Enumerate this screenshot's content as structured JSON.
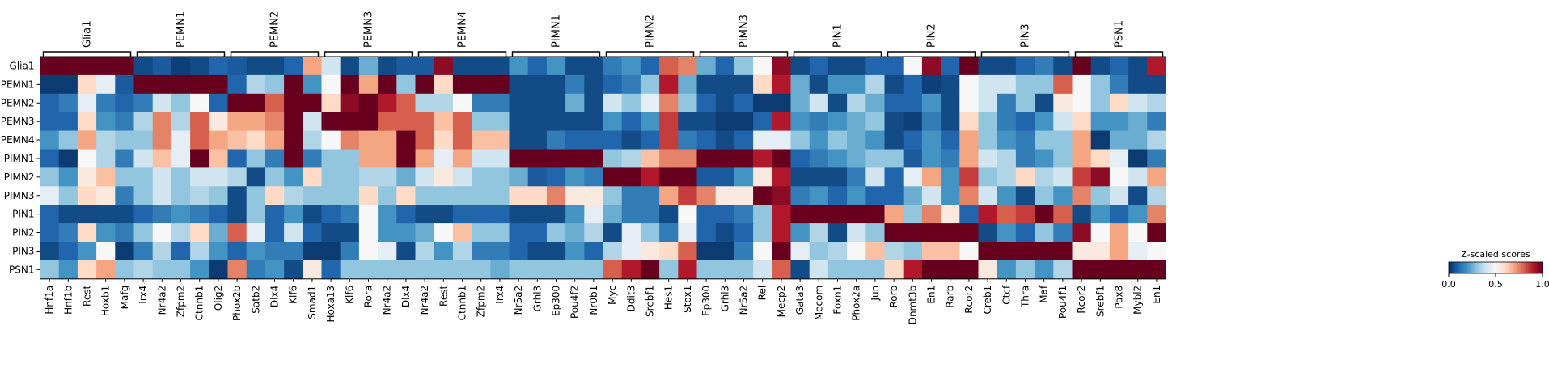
{
  "chart_data": {
    "type": "heatmap",
    "rows": [
      "Glia1",
      "PEMN1",
      "PEMN2",
      "PEMN3",
      "PEMN4",
      "PIMN1",
      "PIMN2",
      "PIMN3",
      "PIN1",
      "PIN2",
      "PIN3",
      "PSN1"
    ],
    "groups": [
      {
        "name": "Glia1",
        "genes": [
          "Hnf1a",
          "Hnf1b",
          "Rest",
          "Hoxb1",
          "Mafg"
        ]
      },
      {
        "name": "PEMN1",
        "genes": [
          "Irx4",
          "Nr4a2",
          "Zfpm2",
          "Ctnnb1",
          "Olig2"
        ]
      },
      {
        "name": "PEMN2",
        "genes": [
          "Phox2b",
          "Satb2",
          "Dlx4",
          "Klf6",
          "Smad1"
        ]
      },
      {
        "name": "PEMN3",
        "genes": [
          "Hoxa13",
          "Klf6",
          "Rora",
          "Nr4a2",
          "Dlx4"
        ]
      },
      {
        "name": "PEMN4",
        "genes": [
          "Nr4a2",
          "Rest",
          "Ctnnb1",
          "Zfpm2",
          "Irx4"
        ]
      },
      {
        "name": "PIMN1",
        "genes": [
          "Nr5a2",
          "Grhl3",
          "Ep300",
          "Pou4f2",
          "Nr0b1"
        ]
      },
      {
        "name": "PIMN2",
        "genes": [
          "Myc",
          "Ddit3",
          "Srebf1",
          "Hes1",
          "Stox1"
        ]
      },
      {
        "name": "PIMN3",
        "genes": [
          "Ep300",
          "Grhl3",
          "Nr5a2",
          "Rel",
          "Mecp2"
        ]
      },
      {
        "name": "PIN1",
        "genes": [
          "Gata3",
          "Mecom",
          "Foxn1",
          "Phox2a",
          "Jun"
        ]
      },
      {
        "name": "PIN2",
        "genes": [
          "Rorb",
          "Dnmt3b",
          "En1",
          "Rarb",
          "Rcor2"
        ]
      },
      {
        "name": "PIN3",
        "genes": [
          "Creb1",
          "Ctcf",
          "Thra",
          "Maf",
          "Pou4f1"
        ]
      },
      {
        "name": "PSN1",
        "genes": [
          "Rcor2",
          "Srebf1",
          "Pax8",
          "Mybl2",
          "En1"
        ]
      }
    ],
    "values": [
      [
        1,
        1,
        1,
        1,
        1,
        0.05,
        0.08,
        0.03,
        0.05,
        0.1,
        0.08,
        0.05,
        0.05,
        0.1,
        0.7,
        0.4,
        0.05,
        0.25,
        0.05,
        0.08,
        0.08,
        0.95,
        0.05,
        0.05,
        0.05,
        0.2,
        0.1,
        0.2,
        0.05,
        0.05,
        0.15,
        0.2,
        0.1,
        0.8,
        0.75,
        0.25,
        0.1,
        0.3,
        0.5,
        0.95,
        0.05,
        0.1,
        0.05,
        0.05,
        0.1,
        0.1,
        0.5,
        0.95,
        0.1,
        1,
        0.05,
        0.05,
        0.1,
        0.15,
        0.05,
        1,
        0.05,
        0.1,
        0.05,
        0.9
      ],
      [
        0.02,
        0.02,
        0.6,
        0.45,
        0.08,
        1,
        1,
        1,
        1,
        1,
        0.1,
        0.35,
        0.3,
        1,
        0.2,
        0.5,
        1,
        0.7,
        1,
        0.3,
        1,
        0.6,
        1,
        1,
        1,
        0.05,
        0.05,
        0.05,
        0.15,
        0.05,
        0.1,
        0.15,
        0.3,
        0.9,
        0.25,
        0.05,
        0.05,
        0.05,
        0.6,
        0.9,
        0.25,
        0.05,
        0.2,
        0.2,
        0.35,
        0.05,
        0.1,
        0.03,
        0.05,
        0.5,
        0.4,
        0.4,
        0.3,
        0.3,
        0.8,
        0.5,
        0.3,
        0.15,
        0.05,
        0.05
      ],
      [
        0.1,
        0.15,
        0.45,
        0.15,
        0.1,
        0.15,
        0.4,
        0.3,
        0.5,
        0.1,
        1,
        1,
        0.8,
        1,
        1,
        0.6,
        0.95,
        1,
        0.9,
        0.8,
        0.35,
        0.35,
        0.5,
        0.15,
        0.15,
        0.05,
        0.05,
        0.05,
        0.25,
        0.05,
        0.4,
        0.3,
        0.45,
        0.75,
        0.3,
        0.1,
        0.05,
        0.1,
        0.02,
        0.02,
        0.25,
        0.4,
        0.05,
        0.35,
        0.25,
        0.1,
        0.1,
        0.2,
        0.05,
        0.5,
        0.4,
        0.15,
        0.3,
        0.05,
        0.55,
        0.5,
        0.3,
        0.6,
        0.4,
        0.35
      ],
      [
        0.1,
        0.1,
        0.6,
        0.2,
        0.15,
        0.35,
        0.75,
        0.35,
        0.8,
        0.55,
        0.7,
        0.7,
        0.75,
        1,
        0.4,
        1,
        1,
        1,
        0.8,
        0.8,
        0.8,
        0.65,
        0.8,
        0.3,
        0.3,
        0.05,
        0.05,
        0.05,
        0.05,
        0.05,
        0.2,
        0.1,
        0.2,
        0.85,
        0.05,
        0.05,
        0.02,
        0.02,
        0.1,
        0.9,
        0.2,
        0.15,
        0.2,
        0.25,
        0.3,
        0.05,
        0.03,
        0.15,
        0.05,
        0.6,
        0.3,
        0.15,
        0.1,
        0.2,
        0.4,
        0.6,
        0.2,
        0.2,
        0.25,
        0.15
      ],
      [
        0.2,
        0.3,
        0.7,
        0.35,
        0.3,
        0.3,
        0.75,
        0.45,
        0.8,
        0.7,
        0.65,
        0.6,
        0.7,
        1,
        0.35,
        0.5,
        0.75,
        0.7,
        0.7,
        1,
        0.8,
        0.6,
        0.8,
        0.65,
        0.65,
        0.05,
        0.05,
        0.15,
        0.1,
        0.1,
        0.1,
        0.05,
        0.1,
        0.85,
        0.15,
        0.1,
        0.05,
        0.1,
        0.45,
        0.45,
        0.3,
        0.2,
        0.3,
        0.25,
        0.2,
        0.05,
        0.1,
        0.2,
        0.1,
        0.7,
        0.3,
        0.2,
        0.15,
        0.3,
        0.3,
        0.7,
        0.02,
        0.25,
        0.25,
        0.35
      ],
      [
        0.1,
        0.02,
        0.5,
        0.35,
        0.15,
        0.4,
        0.65,
        0.45,
        1,
        0.65,
        0.1,
        0.3,
        0.15,
        1,
        0.15,
        0.3,
        0.3,
        0.7,
        0.7,
        1,
        0.7,
        0.45,
        0.7,
        0.4,
        0.4,
        1,
        1,
        1,
        1,
        1,
        0.3,
        0.35,
        0.65,
        0.75,
        0.75,
        1,
        1,
        1,
        0.9,
        1,
        0.1,
        0.15,
        0.2,
        0.25,
        0.3,
        0.3,
        0.08,
        0.2,
        0.15,
        0.7,
        0.4,
        0.35,
        0.15,
        0.2,
        0.3,
        0.7,
        0.6,
        0.45,
        0.02,
        0.15
      ],
      [
        0.3,
        0.2,
        0.55,
        0.65,
        0.3,
        0.3,
        0.4,
        0.3,
        0.4,
        0.4,
        0.35,
        0.05,
        0.3,
        0.2,
        0.6,
        0.3,
        0.3,
        0.35,
        0.35,
        0.25,
        0.4,
        0.55,
        0.4,
        0.3,
        0.3,
        0.25,
        0.08,
        0.1,
        0.2,
        0.15,
        1,
        1,
        0.9,
        1,
        1,
        0.08,
        0.08,
        0.2,
        0.55,
        0.9,
        0.05,
        0.05,
        0.05,
        0.15,
        0.4,
        0.1,
        0.45,
        0.7,
        0.2,
        0.85,
        0.3,
        0.35,
        0.6,
        0.35,
        0.4,
        0.85,
        0.95,
        0.5,
        0.4,
        0.7
      ],
      [
        0.45,
        0.3,
        0.6,
        0.55,
        0.15,
        0.3,
        0.4,
        0.3,
        0.35,
        0.3,
        0.05,
        0.3,
        0.6,
        0.35,
        0.3,
        0.3,
        0.3,
        0.6,
        0.3,
        0.6,
        0.3,
        0.3,
        0.3,
        0.3,
        0.3,
        0.6,
        0.6,
        0.75,
        0.55,
        0.55,
        0.3,
        0.15,
        0.15,
        0.7,
        0.85,
        0.75,
        0.55,
        0.55,
        1,
        0.95,
        0.15,
        0.2,
        0.1,
        0.2,
        0.1,
        0.1,
        0.25,
        0.4,
        0.2,
        0.75,
        0.4,
        0.2,
        0.05,
        0.3,
        0.2,
        0.75,
        0.3,
        0.4,
        0.05,
        0.35
      ],
      [
        0.1,
        0.05,
        0.05,
        0.05,
        0.05,
        0.1,
        0.15,
        0.2,
        0.15,
        0.1,
        0.05,
        0.3,
        0.1,
        0.2,
        0.05,
        0.1,
        0.15,
        0.5,
        0.2,
        0.1,
        0.05,
        0.05,
        0.1,
        0.1,
        0.1,
        0.05,
        0.05,
        0.05,
        0.2,
        0.45,
        0.25,
        0.15,
        0.15,
        0.05,
        0.5,
        0.1,
        0.1,
        0.15,
        0.3,
        0.9,
        1,
        1,
        1,
        1,
        1,
        0.7,
        0.3,
        0.75,
        0.55,
        0.1,
        0.9,
        0.8,
        0.85,
        1,
        0.8,
        0.05,
        0.2,
        0.1,
        0.2,
        0.75
      ],
      [
        0.1,
        0.15,
        0.6,
        0.2,
        0.15,
        0.3,
        0.5,
        0.35,
        0.6,
        0.25,
        0.8,
        0.45,
        0.1,
        0.4,
        0.1,
        0.05,
        0.05,
        0.5,
        0.2,
        0.2,
        0.25,
        0.5,
        0.65,
        0.3,
        0.3,
        0.1,
        0.1,
        0.3,
        0.25,
        0.35,
        0.05,
        0.45,
        0.3,
        0.15,
        0.45,
        0.1,
        0.05,
        0.1,
        0.3,
        0.9,
        0.2,
        0.35,
        0.05,
        0.4,
        0.3,
        1,
        1,
        1,
        1,
        1,
        0.05,
        0.2,
        0.1,
        0.3,
        0.15,
        0.95,
        0.5,
        0.7,
        0.5,
        1
      ],
      [
        0.05,
        0.1,
        0.2,
        0.5,
        0.02,
        0.15,
        0.35,
        0.1,
        0.35,
        0.2,
        0.1,
        0.2,
        0.15,
        0.15,
        0.02,
        0.02,
        0.15,
        0.5,
        0.45,
        0.05,
        0.35,
        0.2,
        0.35,
        0.15,
        0.15,
        0.1,
        0.05,
        0.05,
        0.2,
        0.1,
        0.35,
        0.45,
        0.55,
        0.6,
        0.8,
        0.02,
        0.02,
        0.15,
        0.5,
        1,
        0.45,
        0.3,
        0.35,
        0.5,
        0.65,
        0.35,
        0.3,
        0.65,
        0.65,
        0.5,
        1,
        1,
        1,
        1,
        1,
        0.55,
        0.55,
        0.7,
        0.45,
        0.5
      ],
      [
        0.3,
        0.2,
        0.6,
        0.7,
        0.3,
        0.35,
        0.3,
        0.3,
        0.2,
        0.02,
        0.75,
        0.15,
        0.2,
        0.05,
        0.55,
        0.1,
        0.3,
        0.3,
        0.3,
        0.3,
        0.3,
        0.3,
        0.3,
        0.3,
        0.25,
        0.3,
        0.3,
        0.3,
        0.3,
        0.3,
        0.8,
        0.9,
        1,
        0.3,
        0.9,
        0.3,
        0.3,
        0.3,
        0.4,
        0.8,
        0.05,
        0.4,
        0.3,
        0.3,
        0.3,
        0.6,
        0.9,
        1,
        1,
        1,
        0.55,
        0.2,
        0.3,
        0.2,
        0.35,
        1,
        1,
        1,
        1,
        1
      ]
    ],
    "colormap": "RdBu_r",
    "colorbar": {
      "title": "Z-scaled scores",
      "min": 0.0,
      "max": 1.0,
      "ticks": [
        "0.0",
        "0.5",
        "1.0"
      ]
    },
    "colors": {
      "low": "#053061",
      "mid": "#f7f7f7",
      "high": "#67001f"
    }
  }
}
